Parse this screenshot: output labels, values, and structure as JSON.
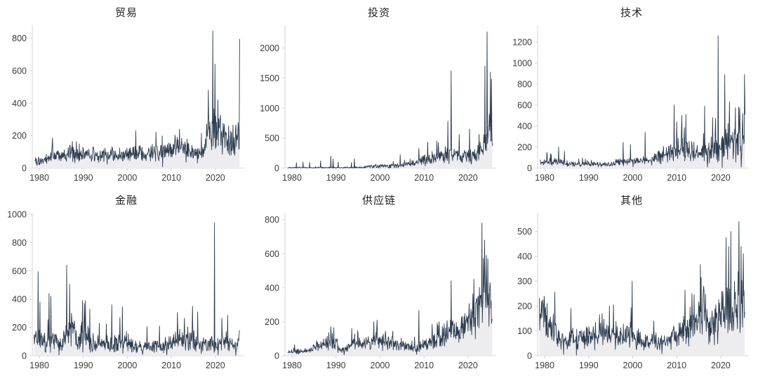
{
  "style": {
    "line_color": "#2d3c50",
    "fill_color": "#ededef",
    "axis_color": "#d4d4d4",
    "tick_label_color": "#3b3b3b",
    "title_color": "#1f1f1f",
    "background": "#ffffff"
  },
  "chart_data": [
    {
      "type": "area",
      "title": "贸易",
      "x_range": [
        1979.0,
        2025.5
      ],
      "axis_x_range": [
        1978.4,
        2026.4
      ],
      "xticks": [
        1980,
        1990,
        2000,
        2010,
        2020
      ],
      "ylim": [
        0,
        880
      ],
      "yticks": [
        0,
        200,
        400,
        600,
        800
      ],
      "points_per_year": 12,
      "seed": 101,
      "noise": [
        0.3,
        2.0
      ],
      "base": [
        [
          1979,
          40
        ],
        [
          1981,
          40
        ],
        [
          1983,
          62
        ],
        [
          1986,
          70
        ],
        [
          1988,
          85
        ],
        [
          1990,
          75
        ],
        [
          1993,
          75
        ],
        [
          1996,
          70
        ],
        [
          1999,
          65
        ],
        [
          2002,
          85
        ],
        [
          2004,
          70
        ],
        [
          2006,
          80
        ],
        [
          2008,
          85
        ],
        [
          2010,
          110
        ],
        [
          2012,
          110
        ],
        [
          2014,
          90
        ],
        [
          2016,
          75
        ],
        [
          2017.5,
          95
        ],
        [
          2018.3,
          200
        ],
        [
          2019.5,
          255
        ],
        [
          2020.5,
          200
        ],
        [
          2021.5,
          160
        ],
        [
          2022.5,
          130
        ],
        [
          2023.5,
          120
        ],
        [
          2024.5,
          130
        ],
        [
          2025.5,
          200
        ]
      ],
      "peaks": [
        [
          1983.0,
          185
        ],
        [
          1987.5,
          165
        ],
        [
          2001.9,
          230
        ],
        [
          2008.0,
          8
        ],
        [
          2011.8,
          240
        ],
        [
          2016.8,
          215
        ],
        [
          2018.4,
          480
        ],
        [
          2019.4,
          845
        ],
        [
          2019.9,
          640
        ],
        [
          2020.6,
          420
        ],
        [
          2022.0,
          270
        ],
        [
          2023.0,
          260
        ],
        [
          2024.0,
          265
        ],
        [
          2025.5,
          795
        ]
      ]
    },
    {
      "type": "area",
      "title": "投资",
      "x_range": [
        1979.0,
        2025.5
      ],
      "axis_x_range": [
        1978.4,
        2026.4
      ],
      "xticks": [
        1980,
        1990,
        2000,
        2010,
        2020
      ],
      "ylim": [
        0,
        2380
      ],
      "yticks": [
        0,
        500,
        1000,
        1500,
        2000
      ],
      "points_per_year": 12,
      "seed": 202,
      "noise": [
        0.25,
        2.0
      ],
      "base": [
        [
          1979,
          7
        ],
        [
          1985,
          9
        ],
        [
          1990,
          11
        ],
        [
          1996,
          13
        ],
        [
          1998,
          35
        ],
        [
          2002,
          35
        ],
        [
          2005,
          45
        ],
        [
          2007,
          60
        ],
        [
          2009,
          110
        ],
        [
          2011,
          140
        ],
        [
          2013,
          170
        ],
        [
          2015,
          200
        ],
        [
          2016,
          220
        ],
        [
          2018,
          180
        ],
        [
          2020,
          200
        ],
        [
          2021,
          180
        ],
        [
          2022,
          200
        ],
        [
          2023,
          260
        ],
        [
          2023.8,
          420
        ],
        [
          2024.5,
          550
        ],
        [
          2025.5,
          400
        ]
      ],
      "zero_prob": [
        [
          1979,
          0.6
        ],
        [
          1996,
          0.55
        ],
        [
          1998,
          0.15
        ],
        [
          2004,
          0.1
        ],
        [
          2006,
          0
        ]
      ],
      "peaks": [
        [
          1981.0,
          90
        ],
        [
          1982.5,
          100
        ],
        [
          1984.0,
          95
        ],
        [
          1986.5,
          120
        ],
        [
          1988.8,
          200
        ],
        [
          1989.3,
          150
        ],
        [
          1990.5,
          100
        ],
        [
          1993.5,
          90
        ],
        [
          1994.2,
          150
        ],
        [
          2004.6,
          220
        ],
        [
          2006.8,
          150
        ],
        [
          2008.8,
          330
        ],
        [
          2010.8,
          430
        ],
        [
          2012.9,
          450
        ],
        [
          2015.4,
          780
        ],
        [
          2016.2,
          1620
        ],
        [
          2018.0,
          560
        ],
        [
          2020.3,
          650
        ],
        [
          2022.5,
          560
        ],
        [
          2023.8,
          1700
        ],
        [
          2024.3,
          2270
        ],
        [
          2024.8,
          900
        ],
        [
          2025.1,
          1600
        ],
        [
          2025.35,
          1480
        ],
        [
          2025.5,
          370
        ]
      ]
    },
    {
      "type": "area",
      "title": "技术",
      "x_range": [
        1979.0,
        2025.5
      ],
      "axis_x_range": [
        1978.4,
        2026.4
      ],
      "xticks": [
        1980,
        1990,
        2000,
        2010,
        2020
      ],
      "ylim": [
        0,
        1360
      ],
      "yticks": [
        0,
        200,
        400,
        600,
        800,
        1000,
        1200
      ],
      "points_per_year": 12,
      "seed": 303,
      "noise": [
        0.2,
        2.0
      ],
      "base": [
        [
          1979,
          45
        ],
        [
          1982,
          55
        ],
        [
          1984,
          40
        ],
        [
          1988,
          35
        ],
        [
          1992,
          30
        ],
        [
          1995,
          30
        ],
        [
          1997,
          55
        ],
        [
          2000,
          55
        ],
        [
          2003,
          60
        ],
        [
          2005,
          70
        ],
        [
          2006,
          110
        ],
        [
          2008,
          110
        ],
        [
          2009,
          140
        ],
        [
          2011,
          190
        ],
        [
          2012,
          190
        ],
        [
          2013,
          150
        ],
        [
          2015,
          110
        ],
        [
          2016,
          140
        ],
        [
          2017,
          140
        ],
        [
          2018,
          170
        ],
        [
          2019,
          200
        ],
        [
          2020,
          220
        ],
        [
          2021,
          240
        ],
        [
          2022,
          240
        ],
        [
          2023,
          230
        ],
        [
          2024,
          220
        ],
        [
          2025.5,
          220
        ]
      ],
      "peaks": [
        [
          1980.5,
          150
        ],
        [
          1983.2,
          200
        ],
        [
          1984.5,
          160
        ],
        [
          1997.8,
          245
        ],
        [
          1999.5,
          225
        ],
        [
          2002.8,
          340
        ],
        [
          2009.4,
          600
        ],
        [
          2010.0,
          440
        ],
        [
          2011.2,
          500
        ],
        [
          2012.1,
          510
        ],
        [
          2016.3,
          590
        ],
        [
          2017.0,
          10
        ],
        [
          2018.2,
          480
        ],
        [
          2018.8,
          475
        ],
        [
          2019.4,
          1260
        ],
        [
          2020.3,
          5
        ],
        [
          2020.9,
          890
        ],
        [
          2022.0,
          630
        ],
        [
          2023.3,
          575
        ],
        [
          2024.3,
          570
        ],
        [
          2024.7,
          10
        ],
        [
          2025.0,
          520
        ],
        [
          2025.4,
          890
        ],
        [
          2025.5,
          510
        ]
      ]
    },
    {
      "type": "area",
      "title": "金融",
      "x_range": [
        1978.8,
        2025.5
      ],
      "axis_x_range": [
        1978.4,
        2026.4
      ],
      "xticks": [
        1980,
        1990,
        2000,
        2010,
        2020
      ],
      "ylim": [
        0,
        1010
      ],
      "yticks": [
        0,
        200,
        400,
        600,
        800,
        1000
      ],
      "points_per_year": 12,
      "seed": 404,
      "noise": [
        0.12,
        2.1
      ],
      "base": [
        [
          1979,
          110
        ],
        [
          1981,
          90
        ],
        [
          1983,
          85
        ],
        [
          1985,
          65
        ],
        [
          1986,
          150
        ],
        [
          1987.5,
          150
        ],
        [
          1989,
          100
        ],
        [
          1990,
          140
        ],
        [
          1992,
          90
        ],
        [
          1994,
          75
        ],
        [
          1996,
          80
        ],
        [
          1998,
          85
        ],
        [
          2000,
          75
        ],
        [
          2002,
          55
        ],
        [
          2004,
          50
        ],
        [
          2006,
          55
        ],
        [
          2008,
          65
        ],
        [
          2010,
          75
        ],
        [
          2012,
          100
        ],
        [
          2014,
          115
        ],
        [
          2015,
          110
        ],
        [
          2016,
          80
        ],
        [
          2018,
          70
        ],
        [
          2020,
          75
        ],
        [
          2022,
          85
        ],
        [
          2023,
          90
        ],
        [
          2024,
          60
        ],
        [
          2025.5,
          90
        ]
      ],
      "peaks": [
        [
          1979.7,
          595
        ],
        [
          1980.1,
          380
        ],
        [
          1982.2,
          440
        ],
        [
          1982.6,
          420
        ],
        [
          1984.5,
          5
        ],
        [
          1986.2,
          640
        ],
        [
          1986.9,
          505
        ],
        [
          1987.3,
          300
        ],
        [
          1989.8,
          390
        ],
        [
          1990.2,
          370
        ],
        [
          1991.5,
          330
        ],
        [
          1993.6,
          230
        ],
        [
          1995.2,
          225
        ],
        [
          1996.5,
          360
        ],
        [
          1998.3,
          270
        ],
        [
          1998.9,
          345
        ],
        [
          2003.5,
          8
        ],
        [
          2004.5,
          205
        ],
        [
          2007.3,
          210
        ],
        [
          2009.0,
          5
        ],
        [
          2011.4,
          305
        ],
        [
          2013.0,
          265
        ],
        [
          2014.8,
          350
        ],
        [
          2016.0,
          310
        ],
        [
          2019.8,
          940
        ],
        [
          2020.6,
          4
        ],
        [
          2021.5,
          265
        ],
        [
          2022.8,
          285
        ],
        [
          2024.6,
          2
        ],
        [
          2025.5,
          180
        ]
      ]
    },
    {
      "type": "area",
      "title": "供应链",
      "x_range": [
        1979.0,
        2025.5
      ],
      "axis_x_range": [
        1978.4,
        2026.4
      ],
      "xticks": [
        1980,
        1990,
        2000,
        2010,
        2020
      ],
      "ylim": [
        0,
        840
      ],
      "yticks": [
        0,
        200,
        400,
        600,
        800
      ],
      "points_per_year": 12,
      "seed": 505,
      "noise": [
        0.3,
        1.9
      ],
      "base": [
        [
          1979,
          18
        ],
        [
          1981,
          22
        ],
        [
          1983,
          20
        ],
        [
          1985,
          45
        ],
        [
          1987,
          55
        ],
        [
          1989,
          85
        ],
        [
          1990,
          70
        ],
        [
          1991,
          25
        ],
        [
          1992,
          30
        ],
        [
          1994,
          70
        ],
        [
          1996,
          55
        ],
        [
          1998,
          75
        ],
        [
          1999,
          90
        ],
        [
          2001,
          70
        ],
        [
          2003,
          70
        ],
        [
          2005,
          55
        ],
        [
          2007,
          45
        ],
        [
          2008,
          40
        ],
        [
          2010,
          55
        ],
        [
          2012,
          70
        ],
        [
          2013,
          95
        ],
        [
          2015,
          110
        ],
        [
          2016,
          140
        ],
        [
          2017,
          120
        ],
        [
          2018,
          120
        ],
        [
          2019,
          140
        ],
        [
          2020,
          160
        ],
        [
          2021,
          220
        ],
        [
          2022,
          260
        ],
        [
          2023,
          330
        ],
        [
          2023.8,
          330
        ],
        [
          2024.5,
          300
        ],
        [
          2025.5,
          260
        ]
      ],
      "peaks": [
        [
          1980.6,
          65
        ],
        [
          1988.8,
          170
        ],
        [
          1989.5,
          165
        ],
        [
          1991.8,
          5
        ],
        [
          1993.6,
          160
        ],
        [
          1995.0,
          130
        ],
        [
          1998.6,
          200
        ],
        [
          1999.3,
          210
        ],
        [
          2002.9,
          145
        ],
        [
          2008.3,
          8
        ],
        [
          2008.8,
          265
        ],
        [
          2011.8,
          185
        ],
        [
          2013.4,
          200
        ],
        [
          2016.2,
          440
        ],
        [
          2019.1,
          230
        ],
        [
          2021.3,
          450
        ],
        [
          2023.2,
          780
        ],
        [
          2023.75,
          680
        ],
        [
          2024.15,
          590
        ],
        [
          2024.5,
          570
        ],
        [
          2025.5,
          215
        ]
      ]
    },
    {
      "type": "area",
      "title": "其他",
      "x_range": [
        1978.8,
        2025.5
      ],
      "axis_x_range": [
        1978.4,
        2026.4
      ],
      "xticks": [
        1980,
        1990,
        2000,
        2010,
        2020
      ],
      "ylim": [
        0,
        575
      ],
      "yticks": [
        0,
        100,
        200,
        300,
        400,
        500
      ],
      "points_per_year": 12,
      "seed": 606,
      "noise": [
        0.25,
        1.9
      ],
      "base": [
        [
          1979,
          150
        ],
        [
          1980,
          150
        ],
        [
          1981,
          110
        ],
        [
          1982,
          90
        ],
        [
          1983,
          60
        ],
        [
          1985,
          55
        ],
        [
          1987,
          65
        ],
        [
          1989,
          70
        ],
        [
          1991,
          75
        ],
        [
          1993,
          80
        ],
        [
          1995,
          85
        ],
        [
          1997,
          75
        ],
        [
          1999,
          80
        ],
        [
          2001,
          65
        ],
        [
          2003,
          55
        ],
        [
          2005,
          50
        ],
        [
          2007,
          45
        ],
        [
          2009,
          60
        ],
        [
          2010,
          80
        ],
        [
          2011,
          95
        ],
        [
          2012,
          110
        ],
        [
          2013,
          115
        ],
        [
          2015,
          140
        ],
        [
          2016,
          150
        ],
        [
          2017,
          140
        ],
        [
          2018,
          120
        ],
        [
          2019,
          130
        ],
        [
          2020,
          160
        ],
        [
          2021,
          180
        ],
        [
          2022,
          190
        ],
        [
          2023,
          170
        ],
        [
          2024,
          200
        ],
        [
          2025.5,
          190
        ]
      ],
      "peaks": [
        [
          1979.3,
          220
        ],
        [
          1980.0,
          220
        ],
        [
          1982.3,
          255
        ],
        [
          1984.3,
          5
        ],
        [
          1986.0,
          190
        ],
        [
          1987.2,
          2
        ],
        [
          1992.5,
          165
        ],
        [
          1995.6,
          205
        ],
        [
          1999.9,
          300
        ],
        [
          2004.8,
          140
        ],
        [
          2006.6,
          8
        ],
        [
          2013.5,
          250
        ],
        [
          2014.0,
          245
        ],
        [
          2016.1,
          280
        ],
        [
          2021.2,
          475
        ],
        [
          2021.8,
          440
        ],
        [
          2022.3,
          500
        ],
        [
          2023.1,
          300
        ],
        [
          2024.15,
          540
        ],
        [
          2024.6,
          440
        ],
        [
          2025.1,
          410
        ],
        [
          2025.5,
          175
        ]
      ]
    }
  ]
}
